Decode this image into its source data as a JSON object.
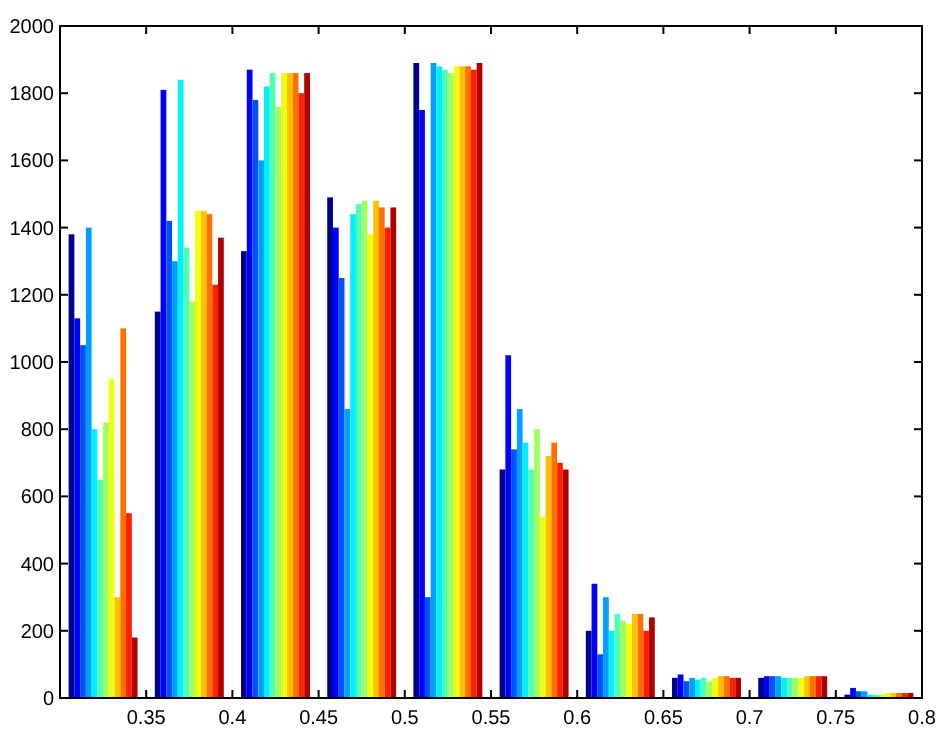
{
  "chart_data": {
    "type": "bar",
    "x": [
      0.325,
      0.375,
      0.425,
      0.475,
      0.525,
      0.575,
      0.625,
      0.675,
      0.725,
      0.775
    ],
    "series": [
      {
        "color": "#00008f",
        "values": [
          1380,
          1150,
          1330,
          1490,
          1890,
          680,
          200,
          60,
          60,
          10
        ]
      },
      {
        "color": "#0000ff",
        "values": [
          1130,
          1810,
          1870,
          1400,
          1750,
          1020,
          340,
          70,
          65,
          30
        ]
      },
      {
        "color": "#0050ff",
        "values": [
          1050,
          1420,
          1780,
          1250,
          300,
          740,
          130,
          50,
          65,
          20
        ]
      },
      {
        "color": "#00a0ff",
        "values": [
          1400,
          1300,
          1600,
          860,
          1890,
          860,
          300,
          60,
          65,
          20
        ]
      },
      {
        "color": "#00f0ff",
        "values": [
          800,
          1840,
          1820,
          1440,
          1880,
          760,
          200,
          55,
          60,
          10
        ]
      },
      {
        "color": "#50ffaf",
        "values": [
          650,
          1340,
          1860,
          1470,
          1870,
          680,
          250,
          60,
          60,
          10
        ]
      },
      {
        "color": "#a0ff60",
        "values": [
          820,
          1180,
          1760,
          1480,
          1860,
          800,
          230,
          50,
          60,
          10
        ]
      },
      {
        "color": "#f0ff10",
        "values": [
          950,
          1450,
          1860,
          1380,
          1880,
          540,
          220,
          60,
          60,
          15
        ]
      },
      {
        "color": "#ffc000",
        "values": [
          300,
          1450,
          1860,
          1480,
          1880,
          720,
          250,
          65,
          65,
          15
        ]
      },
      {
        "color": "#ff7000",
        "values": [
          1100,
          1440,
          1860,
          1460,
          1880,
          760,
          250,
          65,
          65,
          15
        ]
      },
      {
        "color": "#ff2000",
        "values": [
          550,
          1230,
          1800,
          1400,
          1870,
          700,
          200,
          60,
          65,
          15
        ]
      },
      {
        "color": "#b00000",
        "values": [
          180,
          1370,
          1860,
          1460,
          1890,
          680,
          240,
          60,
          65,
          15
        ]
      }
    ],
    "xlim": [
      0.3,
      0.8
    ],
    "xticks": [
      0.35,
      0.4,
      0.45,
      0.5,
      0.55,
      0.6,
      0.65,
      0.7,
      0.75,
      0.8
    ],
    "ylim": [
      0,
      2000
    ],
    "yticks": [
      0,
      200,
      400,
      600,
      800,
      1000,
      1200,
      1400,
      1600,
      1800,
      2000
    ],
    "grid": false
  }
}
